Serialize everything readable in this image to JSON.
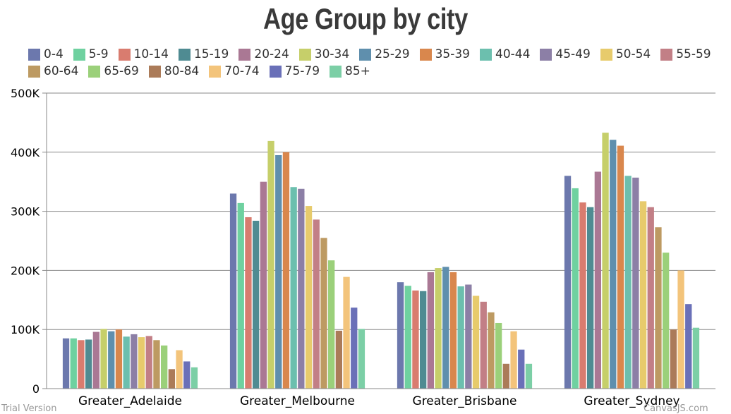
{
  "chart_data": {
    "type": "bar",
    "title": "Age Group by city",
    "categories": [
      "Greater_Adelaide",
      "Greater_Melbourne",
      "Greater_Brisbane",
      "Greater_Sydney"
    ],
    "ylim": [
      0,
      500000
    ],
    "yticks": [
      {
        "value": 0,
        "label": "0"
      },
      {
        "value": 100000,
        "label": "100K"
      },
      {
        "value": 200000,
        "label": "200K"
      },
      {
        "value": 300000,
        "label": "300K"
      },
      {
        "value": 400000,
        "label": "400K"
      },
      {
        "value": 500000,
        "label": "500K"
      }
    ],
    "grid": true,
    "legend_position": "top",
    "series": [
      {
        "name": "0-4",
        "color": "#6c78ad",
        "values": [
          85000,
          330000,
          180000,
          360000
        ]
      },
      {
        "name": "5-9",
        "color": "#6fd1a0",
        "values": [
          85000,
          314000,
          174000,
          339000
        ]
      },
      {
        "name": "10-14",
        "color": "#d97c6f",
        "values": [
          82000,
          290000,
          166000,
          315000
        ]
      },
      {
        "name": "15-19",
        "color": "#4f8b92",
        "values": [
          83000,
          284000,
          165000,
          307000
        ]
      },
      {
        "name": "20-24",
        "color": "#aa7894",
        "values": [
          96000,
          350000,
          197000,
          367000
        ]
      },
      {
        "name": "30-34",
        "color": "#c6cf6a",
        "values": [
          101000,
          419000,
          204000,
          433000
        ]
      },
      {
        "name": "25-29",
        "color": "#5f8fad",
        "values": [
          97000,
          395000,
          206000,
          421000
        ]
      },
      {
        "name": "35-39",
        "color": "#d9874d",
        "values": [
          100000,
          400000,
          197000,
          411000
        ]
      },
      {
        "name": "40-44",
        "color": "#6cbfae",
        "values": [
          88000,
          341000,
          173000,
          360000
        ]
      },
      {
        "name": "45-49",
        "color": "#8c7fa6",
        "values": [
          92000,
          338000,
          176000,
          357000
        ]
      },
      {
        "name": "50-54",
        "color": "#e7cb6c",
        "values": [
          87000,
          309000,
          157000,
          317000
        ]
      },
      {
        "name": "55-59",
        "color": "#c27f86",
        "values": [
          89000,
          286000,
          147000,
          307000
        ]
      },
      {
        "name": "60-64",
        "color": "#bd9a62",
        "values": [
          82000,
          255000,
          129000,
          273000
        ]
      },
      {
        "name": "65-69",
        "color": "#9bd07a",
        "values": [
          73000,
          217000,
          111000,
          230000
        ]
      },
      {
        "name": "80-84",
        "color": "#ab7b59",
        "values": [
          33000,
          98000,
          42000,
          100000
        ]
      },
      {
        "name": "70-74",
        "color": "#f3c47b",
        "values": [
          65000,
          189000,
          97000,
          200000
        ]
      },
      {
        "name": "75-79",
        "color": "#6a70b8",
        "values": [
          46000,
          137000,
          66000,
          143000
        ]
      },
      {
        "name": "85+",
        "color": "#7ccfa6",
        "values": [
          36000,
          101000,
          42000,
          103000
        ]
      }
    ]
  },
  "footer": {
    "left_text": "Trial Version",
    "right_text": "CanvasJS.com"
  }
}
